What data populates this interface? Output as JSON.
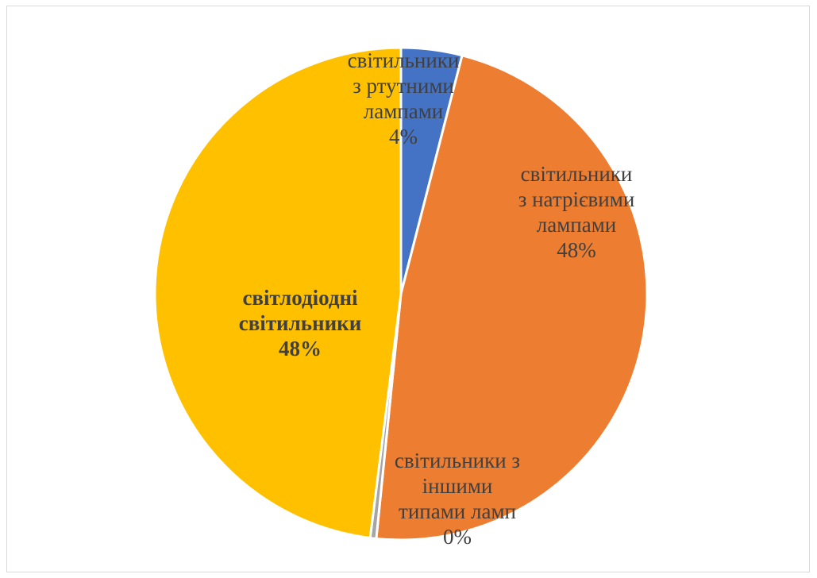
{
  "chart_data": {
    "type": "pie",
    "title": "",
    "start_angle_deg": 0,
    "direction": "clockwise",
    "legend": "none",
    "slices": [
      {
        "label_lines": [
          "світильники",
          "з ртутними",
          "лампами"
        ],
        "percent_label": "4%",
        "value": 4,
        "color": "#4472C4",
        "label_bold": false
      },
      {
        "label_lines": [
          "світильники",
          "з натрієвими",
          "лампами"
        ],
        "percent_label": "48%",
        "value": 47.6,
        "color": "#ED7D31",
        "label_bold": false
      },
      {
        "label_lines": [
          "світильники з",
          "іншими",
          "типами ламп"
        ],
        "percent_label": "0%",
        "value": 0.4,
        "color": "#A5A5A5",
        "label_bold": false
      },
      {
        "label_lines": [
          "світлодіодні",
          "світильники"
        ],
        "percent_label": "48%",
        "value": 48,
        "color": "#FFC000",
        "label_bold": true
      }
    ]
  }
}
